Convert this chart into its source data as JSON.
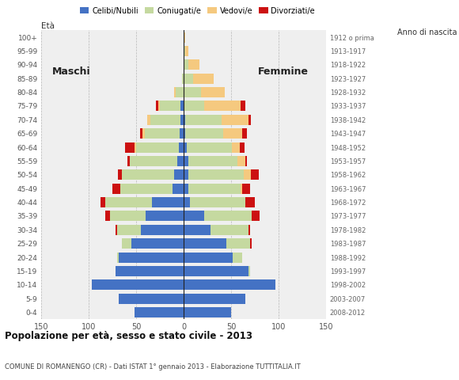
{
  "age_groups": [
    "100+",
    "95-99",
    "90-94",
    "85-89",
    "80-84",
    "75-79",
    "70-74",
    "65-69",
    "60-64",
    "55-59",
    "50-54",
    "45-49",
    "40-44",
    "35-39",
    "30-34",
    "25-29",
    "20-24",
    "15-19",
    "10-14",
    "5-9",
    "0-4"
  ],
  "birth_years": [
    "1912 o prima",
    "1913-1917",
    "1918-1922",
    "1923-1927",
    "1928-1932",
    "1933-1937",
    "1938-1942",
    "1943-1947",
    "1948-1952",
    "1953-1957",
    "1958-1962",
    "1963-1967",
    "1968-1972",
    "1973-1977",
    "1978-1982",
    "1983-1987",
    "1988-1992",
    "1993-1997",
    "1998-2002",
    "2003-2007",
    "2008-2012"
  ],
  "male": {
    "celibi": [
      0,
      0,
      0,
      0,
      0,
      3,
      3,
      4,
      5,
      7,
      10,
      12,
      33,
      40,
      45,
      55,
      68,
      72,
      97,
      68,
      52
    ],
    "coniugati": [
      0,
      0,
      0,
      2,
      8,
      22,
      32,
      37,
      45,
      50,
      55,
      55,
      50,
      38,
      25,
      10,
      2,
      0,
      0,
      0,
      0
    ],
    "vedovi": [
      0,
      0,
      0,
      0,
      2,
      2,
      3,
      2,
      2,
      0,
      0,
      0,
      0,
      0,
      0,
      0,
      0,
      0,
      0,
      0,
      0
    ],
    "divorziati": [
      0,
      0,
      0,
      0,
      0,
      2,
      0,
      3,
      10,
      2,
      4,
      8,
      5,
      5,
      2,
      0,
      0,
      0,
      0,
      0,
      0
    ]
  },
  "female": {
    "celibi": [
      0,
      0,
      0,
      0,
      0,
      0,
      2,
      2,
      3,
      5,
      5,
      5,
      7,
      22,
      28,
      45,
      52,
      68,
      97,
      65,
      50
    ],
    "coniugati": [
      0,
      2,
      5,
      10,
      18,
      22,
      38,
      40,
      48,
      52,
      58,
      55,
      58,
      50,
      40,
      25,
      10,
      2,
      0,
      0,
      0
    ],
    "vedovi": [
      2,
      3,
      12,
      22,
      25,
      38,
      28,
      20,
      8,
      8,
      8,
      2,
      0,
      0,
      0,
      0,
      0,
      0,
      0,
      0,
      0
    ],
    "divorziati": [
      0,
      0,
      0,
      0,
      0,
      5,
      3,
      5,
      5,
      2,
      8,
      8,
      10,
      8,
      2,
      2,
      0,
      0,
      0,
      0,
      0
    ]
  },
  "colors": {
    "celibi": "#4472c4",
    "coniugati": "#c5d9a0",
    "vedovi": "#f5c97f",
    "divorziati": "#cc1111"
  },
  "xlim": 150,
  "title": "Popolazione per età, sesso e stato civile - 2013",
  "subtitle": "COMUNE DI ROMANENGO (CR) - Dati ISTAT 1° gennaio 2013 - Elaborazione TUTTITALIA.IT",
  "label_maschi": "Maschi",
  "label_femmine": "Femmine",
  "label_eta": "Età",
  "label_anno": "Anno di nascita",
  "legend_labels": [
    "Celibi/Nubili",
    "Coniugati/e",
    "Vedovi/e",
    "Divorziati/e"
  ],
  "bg_color": "#ffffff",
  "plot_bg_color": "#efefef"
}
